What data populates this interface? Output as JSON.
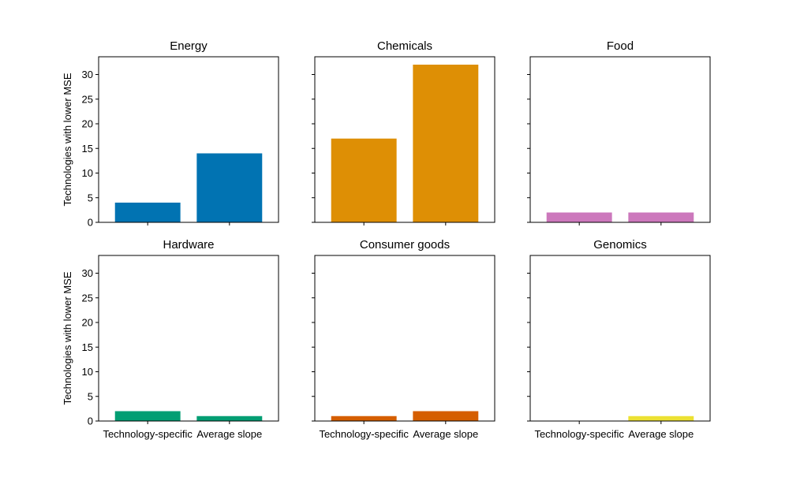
{
  "chart_data": {
    "type": "bar",
    "layout": "2x3 grid of subplots sharing x and y axes",
    "ylabel": "Technologies with lower MSE",
    "categories": [
      "Technology-specific",
      "Average slope"
    ],
    "ylim": [
      0,
      33.6
    ],
    "yticks": [
      0,
      5,
      10,
      15,
      20,
      25,
      30
    ],
    "grid": false,
    "panels": [
      {
        "title": "Energy",
        "color": "#0173b2",
        "values": [
          4,
          14
        ]
      },
      {
        "title": "Chemicals",
        "color": "#de8f05",
        "values": [
          17,
          32
        ]
      },
      {
        "title": "Food",
        "color": "#cc78bc",
        "values": [
          2,
          2
        ]
      },
      {
        "title": "Hardware",
        "color": "#029e73",
        "values": [
          2,
          1
        ]
      },
      {
        "title": "Consumer goods",
        "color": "#d55e00",
        "values": [
          1,
          2
        ]
      },
      {
        "title": "Genomics",
        "color": "#ece133",
        "values": [
          0,
          1
        ]
      }
    ]
  }
}
